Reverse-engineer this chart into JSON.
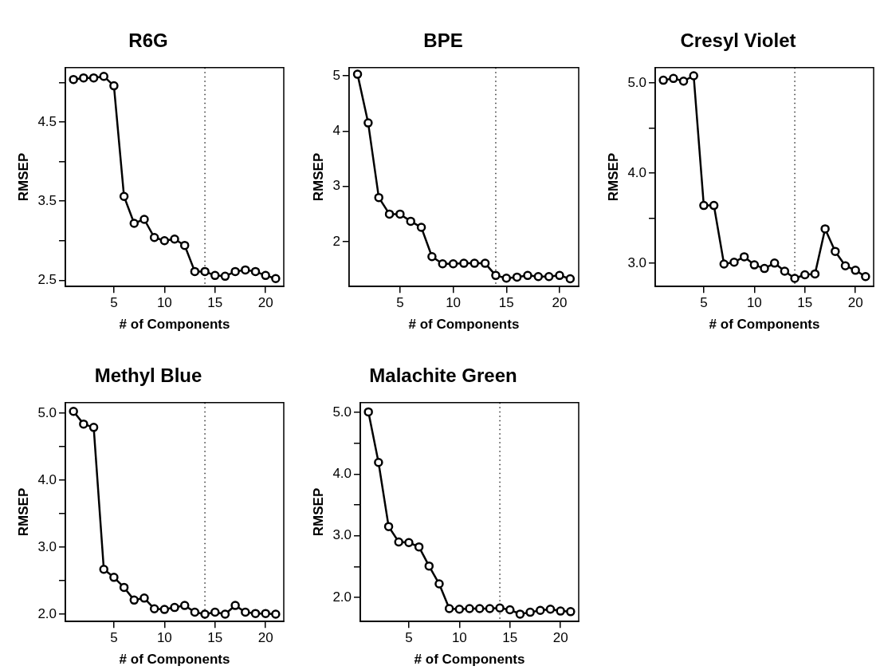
{
  "chart_data": [
    {
      "type": "line",
      "title": "R6G",
      "xlabel": "# of Components",
      "ylabel": "RMSEP",
      "x": [
        1,
        2,
        3,
        4,
        5,
        6,
        7,
        8,
        9,
        10,
        11,
        12,
        13,
        14,
        15,
        16,
        17,
        18,
        19,
        20,
        21
      ],
      "values": [
        5.04,
        5.06,
        5.06,
        5.08,
        4.96,
        3.56,
        3.22,
        3.27,
        3.04,
        3.0,
        3.02,
        2.94,
        2.61,
        2.61,
        2.56,
        2.55,
        2.61,
        2.63,
        2.61,
        2.56,
        2.52
      ],
      "color": "#000000",
      "marker": "circle",
      "line_style": "solid",
      "xlim": [
        0.2,
        21.8
      ],
      "xticks": [
        5,
        10,
        15,
        20
      ],
      "ylim": [
        2.42,
        5.19
      ],
      "yticks": [
        2.5,
        {
          "value": 3,
          "label": null
        },
        3.5,
        {
          "value": 4,
          "label": null
        },
        4.5,
        {
          "value": 5,
          "label": null
        }
      ],
      "ref_lines": [
        {
          "axis": "x",
          "value": 14,
          "line_style": "dotted",
          "color": "#000000"
        }
      ]
    },
    {
      "type": "line",
      "title": "BPE",
      "xlabel": "# of Components",
      "ylabel": "RMSEP",
      "x": [
        1,
        2,
        3,
        4,
        5,
        6,
        7,
        8,
        9,
        10,
        11,
        12,
        13,
        14,
        15,
        16,
        17,
        18,
        19,
        20,
        21
      ],
      "values": [
        5.03,
        4.15,
        2.8,
        2.5,
        2.5,
        2.37,
        2.26,
        1.73,
        1.6,
        1.6,
        1.61,
        1.61,
        1.61,
        1.39,
        1.34,
        1.36,
        1.39,
        1.37,
        1.37,
        1.39,
        1.33
      ],
      "color": "#000000",
      "marker": "circle",
      "line_style": "solid",
      "xlim": [
        0.2,
        21.8
      ],
      "xticks": [
        5,
        10,
        15,
        20
      ],
      "ylim": [
        1.19,
        5.15
      ],
      "yticks": [
        2,
        3,
        4,
        5
      ],
      "ref_lines": [
        {
          "axis": "x",
          "value": 14,
          "line_style": "dotted",
          "color": "#000000"
        }
      ]
    },
    {
      "type": "line",
      "title": "Cresyl Violet",
      "xlabel": "# of Components",
      "ylabel": "RMSEP",
      "x": [
        1,
        2,
        3,
        4,
        5,
        6,
        7,
        8,
        9,
        10,
        11,
        12,
        13,
        14,
        15,
        16,
        17,
        18,
        19,
        20,
        21
      ],
      "values": [
        5.03,
        5.05,
        5.02,
        5.08,
        3.64,
        3.64,
        2.99,
        3.01,
        3.07,
        2.98,
        2.94,
        3.0,
        2.91,
        2.83,
        2.87,
        2.88,
        3.38,
        3.13,
        2.97,
        2.92,
        2.85
      ],
      "color": "#000000",
      "marker": "circle",
      "line_style": "solid",
      "xlim": [
        0.2,
        21.8
      ],
      "xticks": [
        5,
        10,
        15,
        20
      ],
      "ylim": [
        2.74,
        5.17
      ],
      "yticks": [
        {
          "value": 3,
          "label": "3.0"
        },
        {
          "value": 3.5,
          "label": null
        },
        {
          "value": 4,
          "label": "4.0"
        },
        {
          "value": 4.5,
          "label": null
        },
        {
          "value": 5,
          "label": "5.0"
        }
      ],
      "ref_lines": [
        {
          "axis": "x",
          "value": 14,
          "line_style": "dotted",
          "color": "#000000"
        }
      ]
    },
    {
      "type": "line",
      "title": "Methyl Blue",
      "xlabel": "# of Components",
      "ylabel": "RMSEP",
      "x": [
        1,
        2,
        3,
        4,
        5,
        6,
        7,
        8,
        9,
        10,
        11,
        12,
        13,
        14,
        15,
        16,
        17,
        18,
        19,
        20,
        21
      ],
      "values": [
        5.03,
        4.84,
        4.79,
        2.67,
        2.55,
        2.4,
        2.21,
        2.24,
        2.08,
        2.07,
        2.1,
        2.13,
        2.03,
        2.0,
        2.03,
        2.0,
        2.13,
        2.03,
        2.01,
        2.01,
        2.0
      ],
      "color": "#000000",
      "marker": "circle",
      "line_style": "solid",
      "xlim": [
        0.2,
        21.8
      ],
      "xticks": [
        5,
        10,
        15,
        20
      ],
      "ylim": [
        1.89,
        5.16
      ],
      "yticks": [
        {
          "value": 2,
          "label": "2.0"
        },
        {
          "value": 2.5,
          "label": null
        },
        {
          "value": 3,
          "label": "3.0"
        },
        {
          "value": 3.5,
          "label": null
        },
        {
          "value": 4,
          "label": "4.0"
        },
        {
          "value": 4.5,
          "label": null
        },
        {
          "value": 5,
          "label": "5.0"
        }
      ],
      "ref_lines": [
        {
          "axis": "x",
          "value": 14,
          "line_style": "dotted",
          "color": "#000000"
        }
      ]
    },
    {
      "type": "line",
      "title": "Malachite Green",
      "xlabel": "# of Components",
      "ylabel": "RMSEP",
      "x": [
        1,
        2,
        3,
        4,
        5,
        6,
        7,
        8,
        9,
        10,
        11,
        12,
        13,
        14,
        15,
        16,
        17,
        18,
        19,
        20,
        21
      ],
      "values": [
        5.01,
        4.19,
        3.15,
        2.9,
        2.89,
        2.82,
        2.51,
        2.22,
        1.82,
        1.81,
        1.82,
        1.82,
        1.82,
        1.83,
        1.8,
        1.73,
        1.76,
        1.79,
        1.81,
        1.78,
        1.77
      ],
      "color": "#000000",
      "marker": "circle",
      "line_style": "solid",
      "xlim": [
        0.2,
        21.8
      ],
      "xticks": [
        5,
        10,
        15,
        20
      ],
      "ylim": [
        1.61,
        5.16
      ],
      "yticks": [
        {
          "value": 2,
          "label": "2.0"
        },
        {
          "value": 2.5,
          "label": null
        },
        {
          "value": 3,
          "label": "3.0"
        },
        {
          "value": 3.5,
          "label": null
        },
        {
          "value": 4,
          "label": "4.0"
        },
        {
          "value": 4.5,
          "label": null
        },
        {
          "value": 5,
          "label": "5.0"
        }
      ],
      "ref_lines": [
        {
          "axis": "x",
          "value": 14,
          "line_style": "dotted",
          "color": "#000000"
        }
      ]
    }
  ]
}
